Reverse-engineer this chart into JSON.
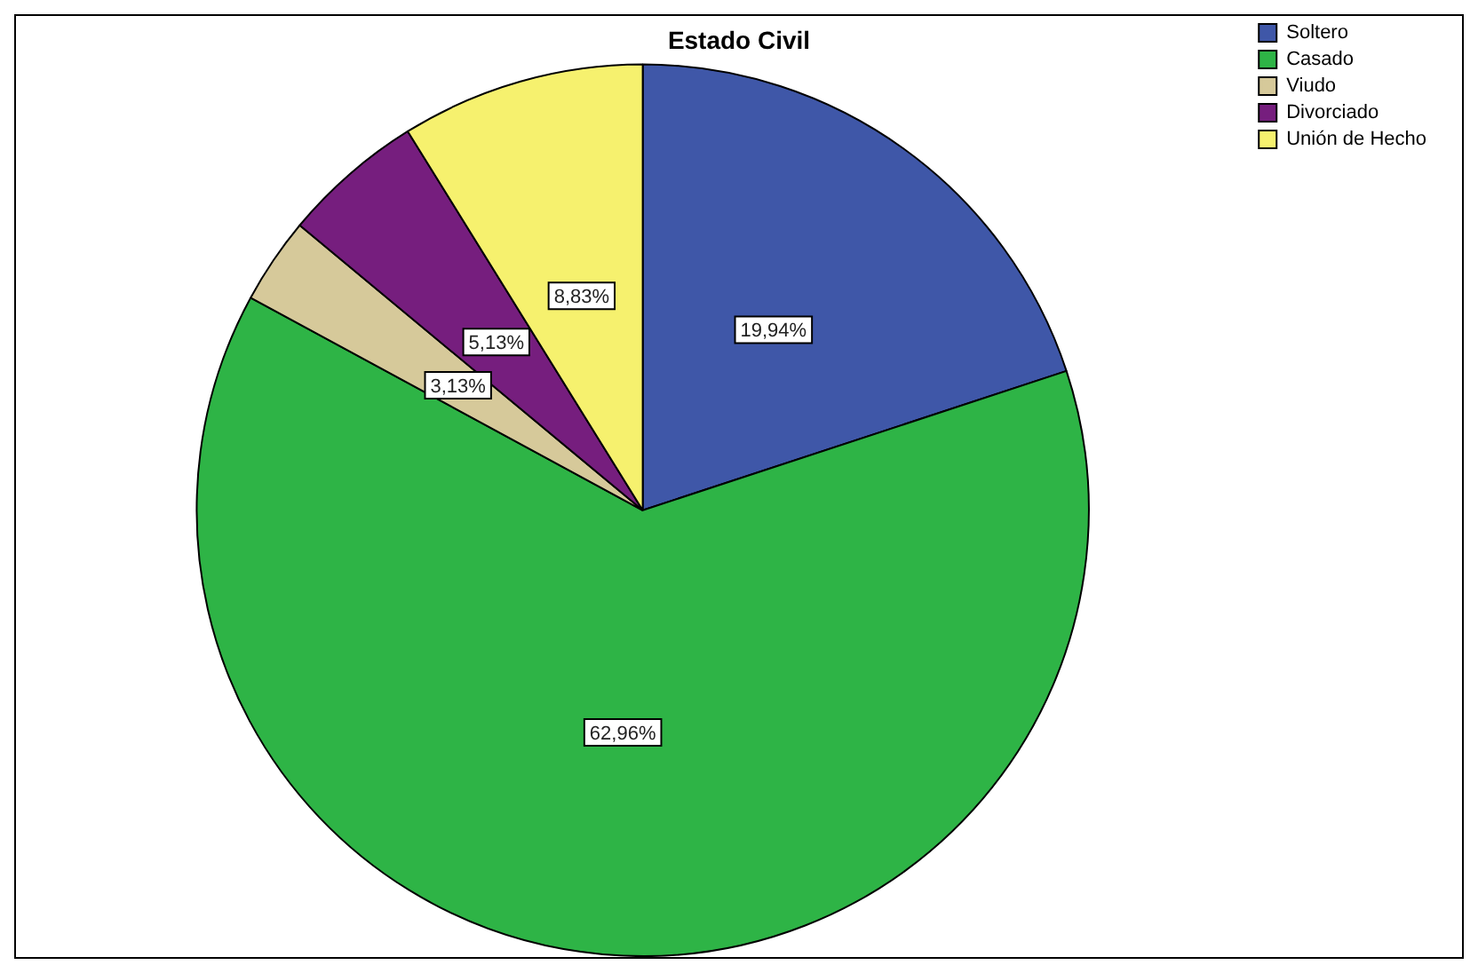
{
  "chart_data": {
    "type": "pie",
    "title": "Estado Civil",
    "categories": [
      "Soltero",
      "Casado",
      "Viudo",
      "Divorciado",
      "Unión de Hecho"
    ],
    "values": [
      19.94,
      62.96,
      3.13,
      5.13,
      8.83
    ],
    "colors": [
      "#3f57a8",
      "#2eb446",
      "#d6c99a",
      "#761e7e",
      "#f6f16e"
    ],
    "value_labels": [
      "19,94%",
      "62,96%",
      "3,13%",
      "5,13%",
      "8,83%"
    ],
    "legend": "top right"
  }
}
